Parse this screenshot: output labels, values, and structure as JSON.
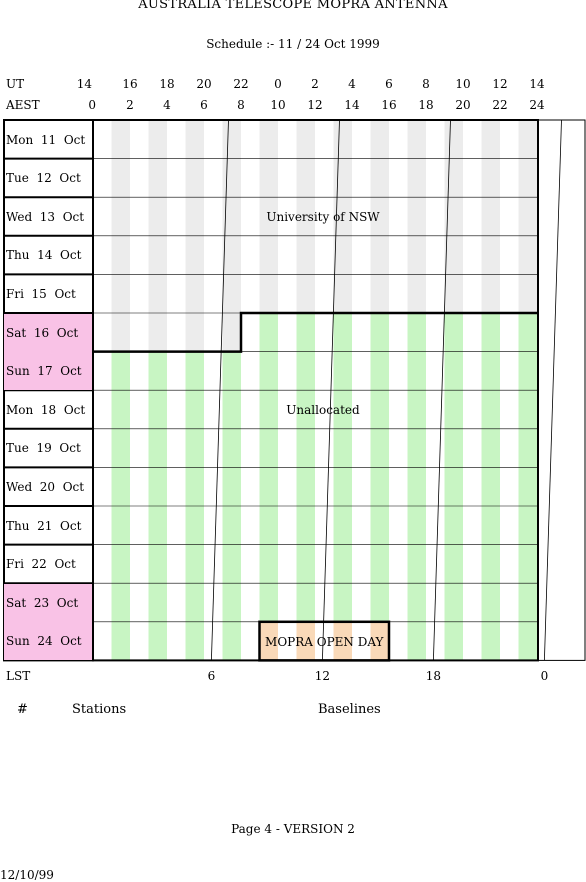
{
  "header": {
    "title": "AUSTRALIA TELESCOPE MOPRA ANTENNA",
    "subtitle": "Schedule :- 11 / 24 Oct 1999"
  },
  "time_axes": {
    "ut_label": "UT",
    "ut_ticks": [
      "14",
      "16",
      "18",
      "20",
      "22",
      "0",
      "2",
      "4",
      "6",
      "8",
      "10",
      "12",
      "14"
    ],
    "aest_label": "AEST",
    "aest_ticks": [
      "0",
      "2",
      "4",
      "6",
      "8",
      "10",
      "12",
      "14",
      "16",
      "18",
      "20",
      "22",
      "24"
    ],
    "lst_label": "LST",
    "lst_ticks": [
      {
        "label": "6",
        "aest_hour": 6.4
      },
      {
        "label": "12",
        "aest_hour": 12.4
      },
      {
        "label": "18",
        "aest_hour": 18.4
      },
      {
        "label": "0",
        "aest_hour": 24.4
      }
    ]
  },
  "days": [
    {
      "name": "Mon",
      "num": "11",
      "month": "Oct",
      "weekend": false
    },
    {
      "name": "Tue",
      "num": "12",
      "month": "Oct",
      "weekend": false
    },
    {
      "name": "Wed",
      "num": "13",
      "month": "Oct",
      "weekend": false
    },
    {
      "name": "Thu",
      "num": "14",
      "month": "Oct",
      "weekend": false
    },
    {
      "name": "Fri",
      "num": "15",
      "month": "Oct",
      "weekend": false
    },
    {
      "name": "Sat",
      "num": "16",
      "month": "Oct",
      "weekend": true
    },
    {
      "name": "Sun",
      "num": "17",
      "month": "Oct",
      "weekend": true
    },
    {
      "name": "Mon",
      "num": "18",
      "month": "Oct",
      "weekend": false
    },
    {
      "name": "Tue",
      "num": "19",
      "month": "Oct",
      "weekend": false
    },
    {
      "name": "Wed",
      "num": "20",
      "month": "Oct",
      "weekend": false
    },
    {
      "name": "Thu",
      "num": "21",
      "month": "Oct",
      "weekend": false
    },
    {
      "name": "Fri",
      "num": "22",
      "month": "Oct",
      "weekend": false
    },
    {
      "name": "Sat",
      "num": "23",
      "month": "Oct",
      "weekend": true
    },
    {
      "name": "Sun",
      "num": "24",
      "month": "Oct",
      "weekend": true
    }
  ],
  "allocations": [
    {
      "label": "University of NSW",
      "color": "#ececec",
      "start_day": 0,
      "start_hour": 0,
      "end_day": 5,
      "end_hour": 8,
      "label_day": 2,
      "label_hour": 12
    },
    {
      "label": "Unallocated",
      "color": "#c8f5c3",
      "start_day": 5,
      "start_hour": 8,
      "end_day": 13,
      "end_hour": 24,
      "label_day": 7,
      "label_hour": 12
    },
    {
      "label": "MOPRA OPEN DAY",
      "color": "#f9d9b8",
      "day": 13,
      "start_hour": 9,
      "end_hour": 16,
      "label_hour": 12.5
    }
  ],
  "legend": {
    "hash": "#",
    "stations": "Stations",
    "baselines": "Baselines"
  },
  "footer": {
    "page": "Page 4 - VERSION 2",
    "date": "12/10/99"
  }
}
